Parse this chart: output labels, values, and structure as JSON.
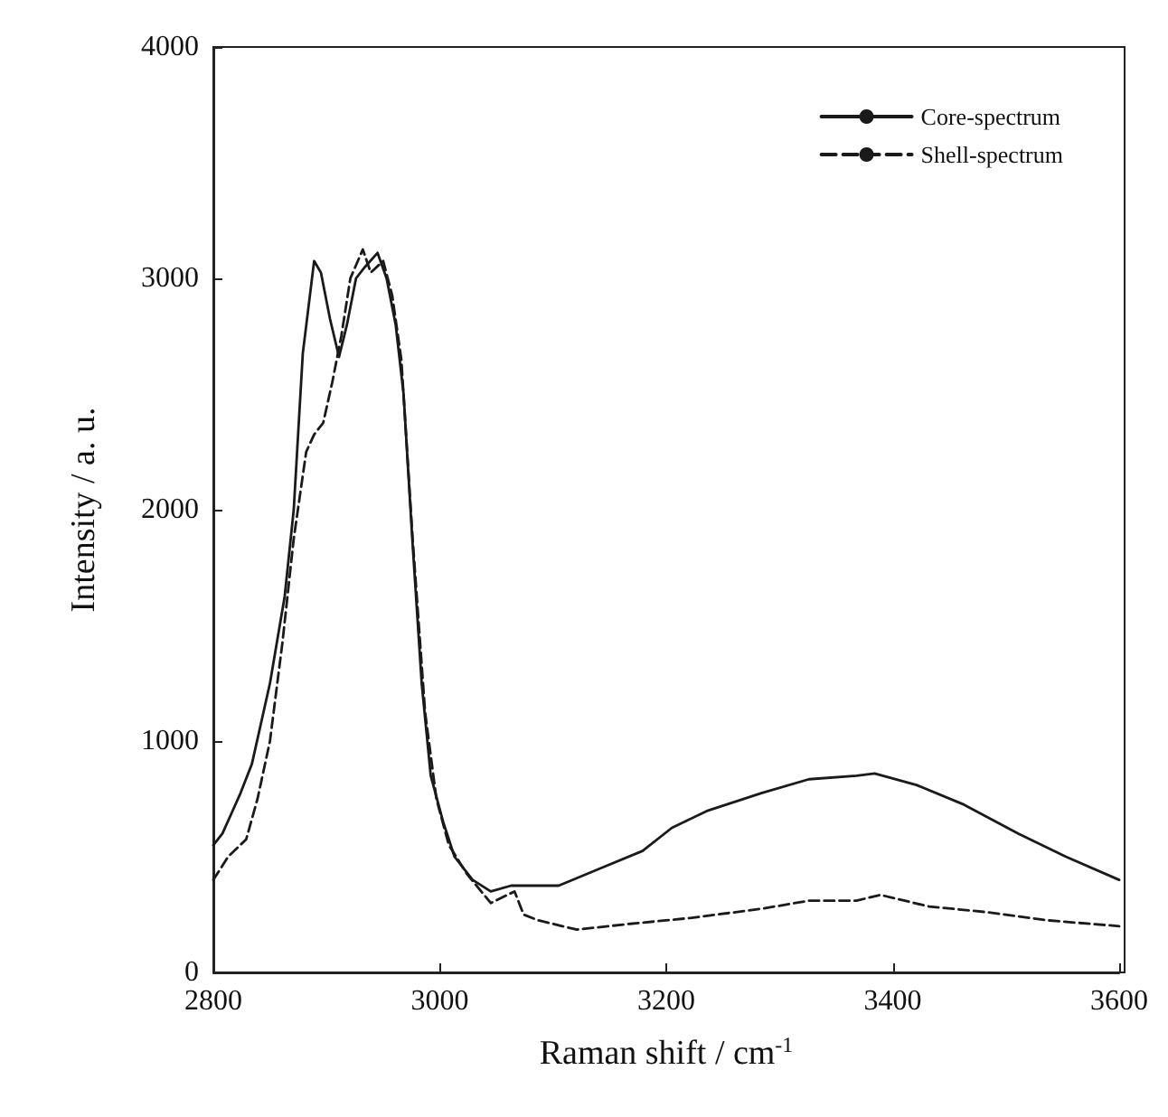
{
  "chart_data": {
    "type": "line",
    "xlabel": "Raman shift / cm$^{-1}$",
    "ylabel": "Intensity / a. u.",
    "xlim": [
      2800,
      3600
    ],
    "xticks": [
      2800,
      3000,
      3200,
      3400,
      3600
    ],
    "ylim": [
      0,
      4000
    ],
    "yticks": [
      0,
      1000,
      2000,
      3000,
      4000
    ],
    "grid": false,
    "legend": "top right",
    "marker": "none",
    "series": [
      {
        "name": "Core-spectrum",
        "color": "#1a1a1a",
        "line_style": "solid",
        "x": [
          2800,
          2808,
          2824,
          2834,
          2850,
          2863,
          2871,
          2879,
          2889,
          2895,
          2903,
          2911,
          2918,
          2926,
          2934,
          2945,
          2953,
          2961,
          2968,
          2976,
          2984,
          2992,
          3003,
          3013,
          3029,
          3045,
          3063,
          3071,
          3105,
          3142,
          3179,
          3205,
          3237,
          3284,
          3326,
          3368,
          3384,
          3421,
          3463,
          3511,
          3553,
          3600
        ],
        "values": [
          550,
          600,
          775,
          900,
          1250,
          1625,
          2000,
          2675,
          3075,
          3025,
          2825,
          2660,
          2800,
          3000,
          3050,
          3110,
          3000,
          2800,
          2500,
          1850,
          1250,
          850,
          650,
          500,
          400,
          350,
          375,
          375,
          375,
          450,
          525,
          625,
          700,
          775,
          835,
          850,
          860,
          810,
          725,
          600,
          500,
          400
        ]
      },
      {
        "name": "Shell-spectrum",
        "color": "#1a1a1a",
        "line_style": "dashed",
        "x": [
          2800,
          2813,
          2829,
          2839,
          2850,
          2861,
          2871,
          2882,
          2889,
          2897,
          2905,
          2913,
          2921,
          2932,
          2939,
          2950,
          2958,
          2966,
          2976,
          2987,
          2997,
          3008,
          3024,
          3045,
          3066,
          3074,
          3087,
          3121,
          3168,
          3221,
          3284,
          3326,
          3368,
          3389,
          3432,
          3484,
          3537,
          3600
        ],
        "values": [
          400,
          500,
          575,
          750,
          1000,
          1425,
          1875,
          2250,
          2325,
          2375,
          2550,
          2750,
          3000,
          3125,
          3025,
          3075,
          2925,
          2650,
          1875,
          1125,
          750,
          550,
          425,
          300,
          350,
          250,
          225,
          185,
          210,
          235,
          275,
          310,
          310,
          335,
          285,
          260,
          225,
          200
        ]
      }
    ]
  }
}
